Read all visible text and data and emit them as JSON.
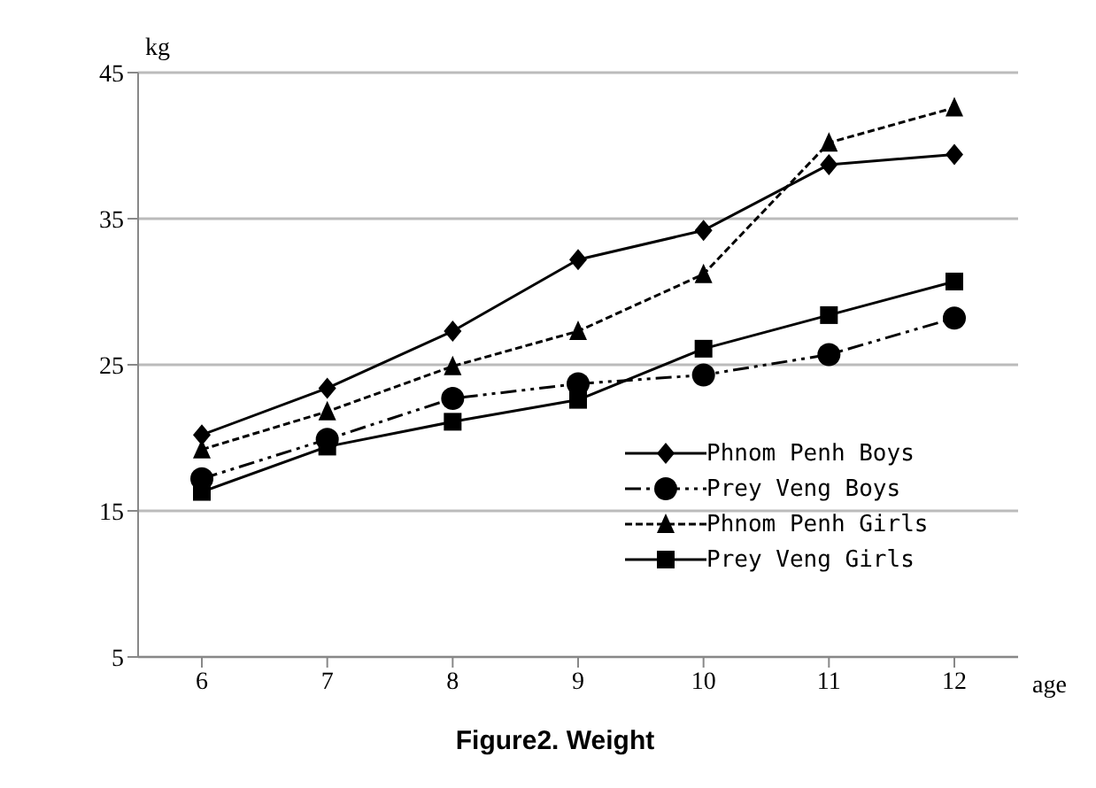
{
  "chart_data": {
    "type": "line",
    "title": "Figure2. Weight",
    "xlabel": "age",
    "ylabel": "kg",
    "categories": [
      "6",
      "7",
      "8",
      "9",
      "10",
      "11",
      "12"
    ],
    "ylim": [
      5,
      45
    ],
    "yticks": [
      5,
      15,
      25,
      35,
      45
    ],
    "grid": "y",
    "legend": "right",
    "series": [
      {
        "name": "Phnom Penh Boys",
        "color": "#000000",
        "marker": "diamond",
        "line_style": "solid",
        "values": [
          20.2,
          23.4,
          27.3,
          32.2,
          34.2,
          38.7,
          39.4
        ]
      },
      {
        "name": "Prey Veng Boys",
        "color": "#000000",
        "marker": "circle",
        "line_style": "dashed",
        "values": [
          17.2,
          19.9,
          22.7,
          23.7,
          24.3,
          25.7,
          28.2
        ]
      },
      {
        "name": "Phnom Penh Girls",
        "color": "#000000",
        "marker": "triangle",
        "line_style": "dotted",
        "values": [
          19.2,
          21.8,
          24.9,
          27.3,
          31.2,
          40.2,
          42.6
        ]
      },
      {
        "name": "Prey Veng Girls",
        "color": "#000000",
        "marker": "square",
        "line_style": "solid",
        "values": [
          16.3,
          19.4,
          21.1,
          22.6,
          26.1,
          28.4,
          30.7
        ]
      }
    ]
  }
}
